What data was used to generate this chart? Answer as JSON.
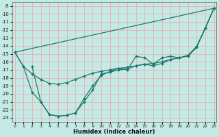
{
  "xlabel": "Humidex (Indice chaleur)",
  "xlim": [
    -0.3,
    23.3
  ],
  "ylim": [
    -23.5,
    -8.5
  ],
  "yticks": [
    -9,
    -10,
    -11,
    -12,
    -13,
    -14,
    -15,
    -16,
    -17,
    -18,
    -19,
    -20,
    -21,
    -22,
    -23
  ],
  "xticks": [
    0,
    1,
    2,
    3,
    4,
    5,
    6,
    7,
    8,
    9,
    10,
    11,
    12,
    13,
    14,
    15,
    16,
    17,
    18,
    19,
    20,
    21,
    22,
    23
  ],
  "bg_color": "#c5eae6",
  "grid_color": "#e8b8b8",
  "grid_color2": "#ffffff",
  "line_color": "#1a7a6e",
  "lines": [
    {
      "x": [
        0,
        1,
        2,
        3,
        4,
        5,
        6,
        7,
        8,
        9,
        10,
        11,
        12,
        13,
        14,
        15,
        16,
        17,
        18,
        19,
        20,
        21,
        22,
        23
      ],
      "y": [
        -14.8,
        -16.6,
        -17.5,
        -18.2,
        -18.7,
        -18.8,
        -18.6,
        -18.2,
        -17.8,
        -17.4,
        -17.2,
        -17.0,
        -16.8,
        -16.7,
        -16.5,
        -16.3,
        -16.2,
        -16.0,
        -15.7,
        -15.5,
        -15.2,
        -14.1,
        -11.8,
        -9.3
      ]
    },
    {
      "x": [
        0,
        23
      ],
      "y": [
        -14.8,
        -9.3
      ]
    },
    {
      "x": [
        0,
        1,
        2,
        3,
        4,
        5,
        6,
        7,
        8,
        9,
        10,
        11,
        12,
        13,
        14,
        15,
        16,
        17,
        18,
        19,
        20,
        21,
        22,
        23
      ],
      "y": [
        -14.8,
        -16.6,
        -19.8,
        -21.0,
        -22.6,
        -22.8,
        -22.7,
        -22.4,
        -21.0,
        -19.5,
        -17.5,
        -17.3,
        -17.0,
        -16.9,
        -16.5,
        -16.3,
        -16.5,
        -16.2,
        -15.7,
        -15.5,
        -15.2,
        -14.1,
        -11.8,
        -9.3
      ]
    },
    {
      "x": [
        2,
        3,
        4,
        5,
        6,
        7,
        8,
        9,
        10,
        11,
        12,
        13,
        14,
        15,
        16,
        17,
        18,
        19,
        20,
        21,
        22,
        23
      ],
      "y": [
        -16.6,
        -21.0,
        -22.6,
        -22.8,
        -22.7,
        -22.4,
        -20.6,
        -19.0,
        -17.7,
        -17.2,
        -16.8,
        -17.0,
        -15.3,
        -15.5,
        -16.3,
        -15.5,
        -15.3,
        -15.5,
        -15.3,
        -14.2,
        -11.8,
        -9.3
      ]
    }
  ]
}
